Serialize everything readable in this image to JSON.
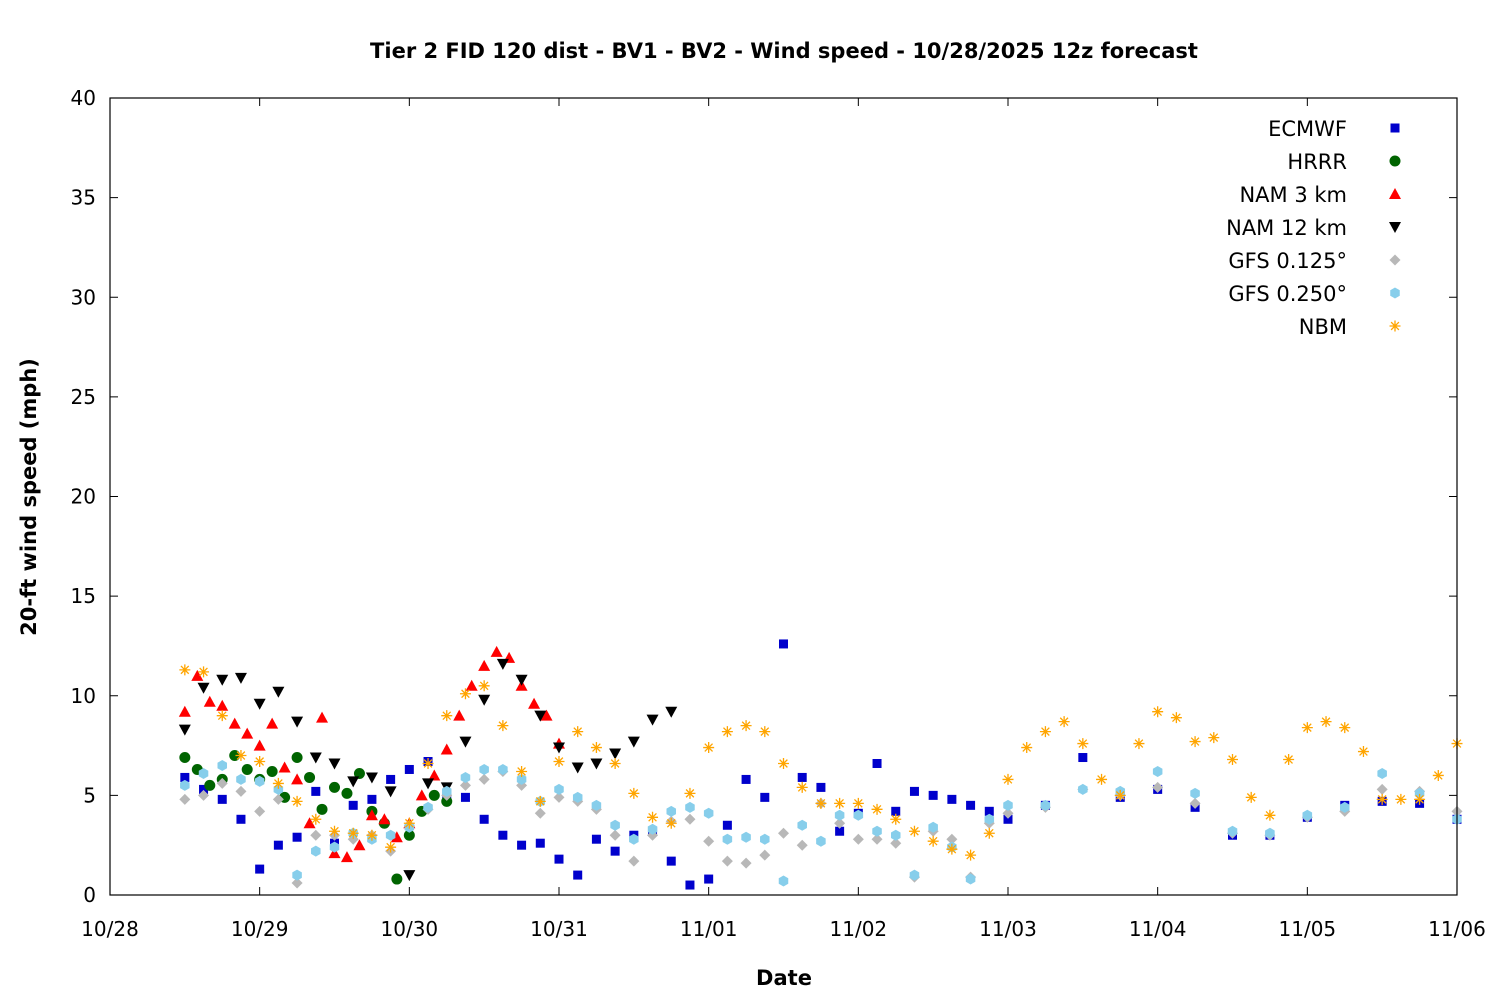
{
  "chart_data": {
    "type": "scatter",
    "title": "Tier 2 FID 120 dist - BV1 - BV2 - Wind speed - 10/28/2025 12z forecast",
    "xlabel": "Date",
    "ylabel": "20-ft wind speed (mph)",
    "xlim": [
      "2025-10-28T00:00",
      "2025-11-06T00:00"
    ],
    "ylim": [
      0,
      40
    ],
    "x_ticks": [
      "10/28",
      "10/29",
      "10/30",
      "10/31",
      "11/01",
      "11/02",
      "11/03",
      "11/04",
      "11/05",
      "11/06"
    ],
    "y_ticks": [
      0,
      5,
      10,
      15,
      20,
      25,
      30,
      35,
      40
    ],
    "grid": false,
    "legend_position": "top-right",
    "series": [
      {
        "name": "ECMWF",
        "marker": "square",
        "color": "#0000cc",
        "x": [
          "2025-10-28T12:00",
          "2025-10-28T15:00",
          "2025-10-28T18:00",
          "2025-10-28T21:00",
          "2025-10-29T00:00",
          "2025-10-29T03:00",
          "2025-10-29T06:00",
          "2025-10-29T09:00",
          "2025-10-29T12:00",
          "2025-10-29T15:00",
          "2025-10-29T18:00",
          "2025-10-29T21:00",
          "2025-10-30T00:00",
          "2025-10-30T03:00",
          "2025-10-30T06:00",
          "2025-10-30T09:00",
          "2025-10-30T12:00",
          "2025-10-30T15:00",
          "2025-10-30T18:00",
          "2025-10-30T21:00",
          "2025-10-31T00:00",
          "2025-10-31T03:00",
          "2025-10-31T06:00",
          "2025-10-31T09:00",
          "2025-10-31T12:00",
          "2025-10-31T15:00",
          "2025-10-31T18:00",
          "2025-10-31T21:00",
          "2025-11-01T00:00",
          "2025-11-01T03:00",
          "2025-11-01T06:00",
          "2025-11-01T09:00",
          "2025-11-01T12:00",
          "2025-11-01T15:00",
          "2025-11-01T18:00",
          "2025-11-01T21:00",
          "2025-11-02T00:00",
          "2025-11-02T03:00",
          "2025-11-02T06:00",
          "2025-11-02T09:00",
          "2025-11-02T12:00",
          "2025-11-02T15:00",
          "2025-11-02T18:00",
          "2025-11-02T21:00",
          "2025-11-03T00:00",
          "2025-11-03T06:00",
          "2025-11-03T12:00",
          "2025-11-03T18:00",
          "2025-11-04T00:00",
          "2025-11-04T06:00",
          "2025-11-04T12:00",
          "2025-11-04T18:00",
          "2025-11-05T00:00",
          "2025-11-05T06:00",
          "2025-11-05T12:00",
          "2025-11-05T18:00",
          "2025-11-06T00:00"
        ],
        "y": [
          5.9,
          5.3,
          4.8,
          3.8,
          1.3,
          2.5,
          2.9,
          5.2,
          2.6,
          4.5,
          4.8,
          5.8,
          6.3,
          6.7,
          5.0,
          4.9,
          3.8,
          3.0,
          2.5,
          2.6,
          1.8,
          1.0,
          2.8,
          2.2,
          3.0,
          3.2,
          1.7,
          0.5,
          0.8,
          3.5,
          5.8,
          4.9,
          12.6,
          5.9,
          5.4,
          3.2,
          4.1,
          6.6,
          4.2,
          5.2,
          5.0,
          4.8,
          4.5,
          4.2,
          3.8,
          4.5,
          6.9,
          4.9,
          5.3,
          4.4,
          3.0,
          3.0,
          3.9,
          4.5,
          4.7,
          4.6,
          3.8
        ]
      },
      {
        "name": "HRRR",
        "marker": "circle",
        "color": "#006400",
        "x": [
          "2025-10-28T12:00",
          "2025-10-28T14:00",
          "2025-10-28T16:00",
          "2025-10-28T18:00",
          "2025-10-28T20:00",
          "2025-10-28T22:00",
          "2025-10-29T00:00",
          "2025-10-29T02:00",
          "2025-10-29T04:00",
          "2025-10-29T06:00",
          "2025-10-29T08:00",
          "2025-10-29T10:00",
          "2025-10-29T12:00",
          "2025-10-29T14:00",
          "2025-10-29T16:00",
          "2025-10-29T18:00",
          "2025-10-29T20:00",
          "2025-10-29T22:00",
          "2025-10-30T00:00",
          "2025-10-30T02:00",
          "2025-10-30T04:00",
          "2025-10-30T06:00"
        ],
        "y": [
          6.9,
          6.3,
          5.5,
          5.8,
          7.0,
          6.3,
          5.8,
          6.2,
          4.9,
          6.9,
          5.9,
          4.3,
          5.4,
          5.1,
          6.1,
          4.2,
          3.6,
          0.8,
          3.0,
          4.2,
          5.0,
          4.7
        ]
      },
      {
        "name": "NAM 3 km",
        "marker": "triangle-up",
        "color": "#ff0000",
        "x": [
          "2025-10-28T12:00",
          "2025-10-28T14:00",
          "2025-10-28T16:00",
          "2025-10-28T18:00",
          "2025-10-28T20:00",
          "2025-10-28T22:00",
          "2025-10-29T00:00",
          "2025-10-29T02:00",
          "2025-10-29T04:00",
          "2025-10-29T06:00",
          "2025-10-29T08:00",
          "2025-10-29T10:00",
          "2025-10-29T12:00",
          "2025-10-29T14:00",
          "2025-10-29T16:00",
          "2025-10-29T18:00",
          "2025-10-29T20:00",
          "2025-10-29T22:00",
          "2025-10-30T00:00",
          "2025-10-30T02:00",
          "2025-10-30T04:00",
          "2025-10-30T06:00",
          "2025-10-30T08:00",
          "2025-10-30T10:00",
          "2025-10-30T12:00",
          "2025-10-30T14:00",
          "2025-10-30T16:00",
          "2025-10-30T18:00",
          "2025-10-30T20:00",
          "2025-10-30T22:00",
          "2025-10-31T00:00"
        ],
        "y": [
          9.2,
          11.0,
          9.7,
          9.5,
          8.6,
          8.1,
          7.5,
          8.6,
          6.4,
          5.8,
          3.6,
          8.9,
          2.1,
          1.9,
          2.5,
          4.0,
          3.8,
          2.9,
          3.6,
          5.0,
          6.0,
          7.3,
          9.0,
          10.5,
          11.5,
          12.2,
          11.9,
          10.5,
          9.6,
          9.0,
          7.6
        ]
      },
      {
        "name": "NAM 12 km",
        "marker": "triangle-down",
        "color": "#000000",
        "x": [
          "2025-10-28T12:00",
          "2025-10-28T15:00",
          "2025-10-28T18:00",
          "2025-10-28T21:00",
          "2025-10-29T00:00",
          "2025-10-29T03:00",
          "2025-10-29T06:00",
          "2025-10-29T09:00",
          "2025-10-29T12:00",
          "2025-10-29T15:00",
          "2025-10-29T18:00",
          "2025-10-29T21:00",
          "2025-10-30T00:00",
          "2025-10-30T03:00",
          "2025-10-30T06:00",
          "2025-10-30T09:00",
          "2025-10-30T12:00",
          "2025-10-30T15:00",
          "2025-10-30T18:00",
          "2025-10-30T21:00",
          "2025-10-31T00:00",
          "2025-10-31T03:00",
          "2025-10-31T06:00",
          "2025-10-31T09:00",
          "2025-10-31T12:00",
          "2025-10-31T15:00",
          "2025-10-31T18:00"
        ],
        "y": [
          8.3,
          10.4,
          10.8,
          10.9,
          9.6,
          10.2,
          8.7,
          6.9,
          6.6,
          5.7,
          5.9,
          5.2,
          1.0,
          5.6,
          5.4,
          7.7,
          9.8,
          11.6,
          10.8,
          9.0,
          7.4,
          6.4,
          6.6,
          7.1,
          7.7,
          8.8,
          9.2
        ]
      },
      {
        "name": "GFS 0.125°",
        "marker": "diamond",
        "color": "#b8b8b8",
        "x": [
          "2025-10-28T12:00",
          "2025-10-28T15:00",
          "2025-10-28T18:00",
          "2025-10-28T21:00",
          "2025-10-29T00:00",
          "2025-10-29T03:00",
          "2025-10-29T06:00",
          "2025-10-29T09:00",
          "2025-10-29T12:00",
          "2025-10-29T15:00",
          "2025-10-29T18:00",
          "2025-10-29T21:00",
          "2025-10-30T00:00",
          "2025-10-30T03:00",
          "2025-10-30T06:00",
          "2025-10-30T09:00",
          "2025-10-30T12:00",
          "2025-10-30T15:00",
          "2025-10-30T18:00",
          "2025-10-30T21:00",
          "2025-10-31T00:00",
          "2025-10-31T03:00",
          "2025-10-31T06:00",
          "2025-10-31T09:00",
          "2025-10-31T12:00",
          "2025-10-31T15:00",
          "2025-10-31T18:00",
          "2025-10-31T21:00",
          "2025-11-01T00:00",
          "2025-11-01T03:00",
          "2025-11-01T06:00",
          "2025-11-01T09:00",
          "2025-11-01T12:00",
          "2025-11-01T15:00",
          "2025-11-01T18:00",
          "2025-11-01T21:00",
          "2025-11-02T00:00",
          "2025-11-02T03:00",
          "2025-11-02T06:00",
          "2025-11-02T09:00",
          "2025-11-02T12:00",
          "2025-11-02T15:00",
          "2025-11-02T18:00",
          "2025-11-02T21:00",
          "2025-11-03T00:00",
          "2025-11-03T06:00",
          "2025-11-03T12:00",
          "2025-11-03T18:00",
          "2025-11-04T00:00",
          "2025-11-04T06:00",
          "2025-11-04T12:00",
          "2025-11-04T18:00",
          "2025-11-05T00:00",
          "2025-11-05T06:00",
          "2025-11-05T12:00",
          "2025-11-05T18:00",
          "2025-11-06T00:00"
        ],
        "y": [
          4.8,
          5.0,
          5.6,
          5.2,
          4.2,
          4.8,
          0.6,
          3.0,
          3.0,
          2.8,
          3.0,
          2.2,
          3.5,
          4.3,
          5.0,
          5.5,
          5.8,
          6.2,
          5.5,
          4.1,
          4.9,
          4.7,
          4.3,
          3.0,
          1.7,
          3.0,
          3.7,
          3.8,
          2.7,
          1.7,
          1.6,
          2.0,
          3.1,
          2.5,
          4.6,
          3.6,
          2.8,
          2.8,
          2.6,
          0.9,
          3.2,
          2.8,
          0.9,
          3.6,
          4.1,
          4.4,
          5.3,
          5.0,
          5.4,
          4.6,
          3.1,
          3.0,
          3.9,
          4.2,
          5.3,
          5.2,
          4.2
        ]
      },
      {
        "name": "GFS 0.250°",
        "marker": "hexagon",
        "color": "#87ceeb",
        "x": [
          "2025-10-28T12:00",
          "2025-10-28T15:00",
          "2025-10-28T18:00",
          "2025-10-28T21:00",
          "2025-10-29T00:00",
          "2025-10-29T03:00",
          "2025-10-29T06:00",
          "2025-10-29T09:00",
          "2025-10-29T12:00",
          "2025-10-29T15:00",
          "2025-10-29T18:00",
          "2025-10-29T21:00",
          "2025-10-30T00:00",
          "2025-10-30T03:00",
          "2025-10-30T06:00",
          "2025-10-30T09:00",
          "2025-10-30T12:00",
          "2025-10-30T15:00",
          "2025-10-30T18:00",
          "2025-10-30T21:00",
          "2025-10-31T00:00",
          "2025-10-31T03:00",
          "2025-10-31T06:00",
          "2025-10-31T09:00",
          "2025-10-31T12:00",
          "2025-10-31T15:00",
          "2025-10-31T18:00",
          "2025-10-31T21:00",
          "2025-11-01T00:00",
          "2025-11-01T03:00",
          "2025-11-01T06:00",
          "2025-11-01T09:00",
          "2025-11-01T12:00",
          "2025-11-01T15:00",
          "2025-11-01T18:00",
          "2025-11-01T21:00",
          "2025-11-02T00:00",
          "2025-11-02T03:00",
          "2025-11-02T06:00",
          "2025-11-02T09:00",
          "2025-11-02T12:00",
          "2025-11-02T15:00",
          "2025-11-02T18:00",
          "2025-11-02T21:00",
          "2025-11-03T00:00",
          "2025-11-03T06:00",
          "2025-11-03T12:00",
          "2025-11-03T18:00",
          "2025-11-04T00:00",
          "2025-11-04T06:00",
          "2025-11-04T12:00",
          "2025-11-04T18:00",
          "2025-11-05T00:00",
          "2025-11-05T06:00",
          "2025-11-05T12:00",
          "2025-11-05T18:00",
          "2025-11-06T00:00"
        ],
        "y": [
          5.5,
          6.1,
          6.5,
          5.8,
          5.7,
          5.3,
          1.0,
          2.2,
          2.4,
          3.1,
          2.8,
          3.0,
          3.4,
          4.4,
          5.2,
          5.9,
          6.3,
          6.3,
          5.8,
          4.7,
          5.3,
          4.9,
          4.5,
          3.5,
          2.8,
          3.3,
          4.2,
          4.4,
          4.1,
          2.8,
          2.9,
          2.8,
          0.7,
          3.5,
          2.7,
          4.0,
          4.0,
          3.2,
          3.0,
          1.0,
          3.4,
          2.4,
          0.8,
          3.8,
          4.5,
          4.5,
          5.3,
          5.2,
          6.2,
          5.1,
          3.2,
          3.1,
          4.0,
          4.4,
          6.1,
          5.1,
          3.8
        ]
      },
      {
        "name": "NBM",
        "marker": "asterisk",
        "color": "#ffa500",
        "x": [
          "2025-10-28T12:00",
          "2025-10-28T15:00",
          "2025-10-28T18:00",
          "2025-10-28T21:00",
          "2025-10-29T00:00",
          "2025-10-29T03:00",
          "2025-10-29T06:00",
          "2025-10-29T09:00",
          "2025-10-29T12:00",
          "2025-10-29T15:00",
          "2025-10-29T18:00",
          "2025-10-29T21:00",
          "2025-10-30T00:00",
          "2025-10-30T03:00",
          "2025-10-30T06:00",
          "2025-10-30T09:00",
          "2025-10-30T12:00",
          "2025-10-30T15:00",
          "2025-10-30T18:00",
          "2025-10-30T21:00",
          "2025-10-31T00:00",
          "2025-10-31T03:00",
          "2025-10-31T06:00",
          "2025-10-31T09:00",
          "2025-10-31T12:00",
          "2025-10-31T15:00",
          "2025-10-31T18:00",
          "2025-10-31T21:00",
          "2025-11-01T00:00",
          "2025-11-01T03:00",
          "2025-11-01T06:00",
          "2025-11-01T09:00",
          "2025-11-01T12:00",
          "2025-11-01T15:00",
          "2025-11-01T18:00",
          "2025-11-01T21:00",
          "2025-11-02T00:00",
          "2025-11-02T03:00",
          "2025-11-02T06:00",
          "2025-11-02T09:00",
          "2025-11-02T12:00",
          "2025-11-02T15:00",
          "2025-11-02T18:00",
          "2025-11-02T21:00",
          "2025-11-03T00:00",
          "2025-11-03T03:00",
          "2025-11-03T06:00",
          "2025-11-03T09:00",
          "2025-11-03T12:00",
          "2025-11-03T15:00",
          "2025-11-03T18:00",
          "2025-11-03T21:00",
          "2025-11-04T00:00",
          "2025-11-04T03:00",
          "2025-11-04T06:00",
          "2025-11-04T09:00",
          "2025-11-04T12:00",
          "2025-11-04T15:00",
          "2025-11-04T18:00",
          "2025-11-04T21:00",
          "2025-11-05T00:00",
          "2025-11-05T03:00",
          "2025-11-05T06:00",
          "2025-11-05T09:00",
          "2025-11-05T12:00",
          "2025-11-05T15:00",
          "2025-11-05T18:00",
          "2025-11-05T21:00",
          "2025-11-06T00:00"
        ],
        "y": [
          11.3,
          11.2,
          9.0,
          7.0,
          6.7,
          5.6,
          4.7,
          3.8,
          3.2,
          3.1,
          3.0,
          2.4,
          3.6,
          6.6,
          9.0,
          10.1,
          10.5,
          8.5,
          6.2,
          4.7,
          6.7,
          8.2,
          7.4,
          6.6,
          5.1,
          3.9,
          3.6,
          5.1,
          7.4,
          8.2,
          8.5,
          8.2,
          6.6,
          5.4,
          4.6,
          4.6,
          4.6,
          4.3,
          3.8,
          3.2,
          2.7,
          2.3,
          2.0,
          3.1,
          5.8,
          7.4,
          8.2,
          8.7,
          7.6,
          5.8,
          5.0,
          7.6,
          9.2,
          8.9,
          7.7,
          7.9,
          6.8,
          4.9,
          4.0,
          6.8,
          8.4,
          8.7,
          8.4,
          7.2,
          4.8,
          4.8,
          4.8,
          6.0,
          7.6
        ]
      }
    ]
  }
}
